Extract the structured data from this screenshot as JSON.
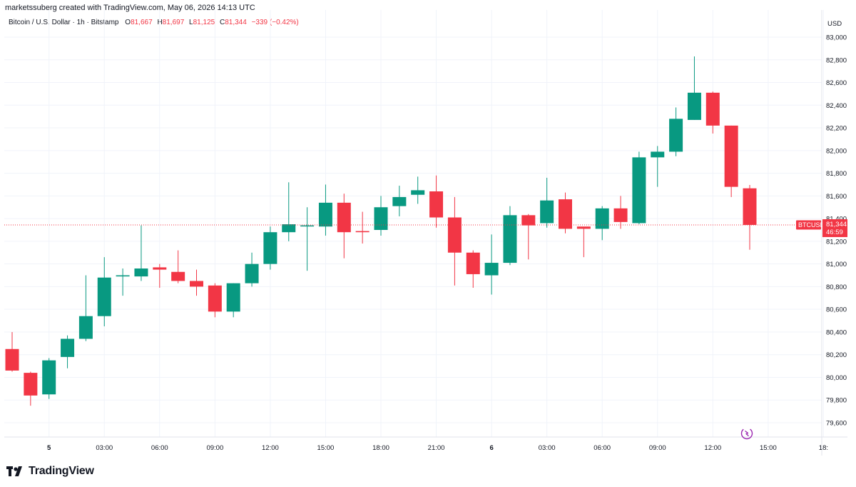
{
  "header": {
    "credit": "marketssuberg created with TradingView.com, May 06, 2026 14:13 UTC"
  },
  "legend": {
    "symbol": "Bitcoin / U.S. Dollar · 1h · Bitstamp",
    "o_label": "O",
    "o_value": "81,667",
    "h_label": "H",
    "h_value": "81,697",
    "l_label": "L",
    "l_value": "81,125",
    "c_label": "C",
    "c_value": "81,344",
    "change": "−339 (−0.42%)"
  },
  "price_tag": {
    "symbol": "BTCUSD",
    "price": "81,344",
    "countdown": "46:59"
  },
  "brand": {
    "name": "TradingView"
  },
  "colors": {
    "up": "#089981",
    "down": "#f23645",
    "grid": "#f0f3fa",
    "axis_text": "#131722"
  },
  "chart_data": {
    "type": "candlestick",
    "currency": "USD",
    "ylim": [
      79450,
      83150
    ],
    "y_ticks": [
      79600,
      79800,
      80000,
      80200,
      80400,
      80600,
      80800,
      81000,
      81200,
      81400,
      81600,
      81800,
      82000,
      82200,
      82400,
      82600,
      82800,
      83000
    ],
    "y_tick_labels": [
      "79,600",
      "79,800",
      "80,000",
      "80,200",
      "80,400",
      "80,600",
      "80,800",
      "81,000",
      "81,200",
      "81,400",
      "81,600",
      "81,800",
      "82,000",
      "82,200",
      "82,400",
      "82,600",
      "82,800",
      "83,000"
    ],
    "x_ticks": [
      {
        "index": 2,
        "label": "5",
        "bold": true
      },
      {
        "index": 5,
        "label": "03:00"
      },
      {
        "index": 8,
        "label": "06:00"
      },
      {
        "index": 11,
        "label": "09:00"
      },
      {
        "index": 14,
        "label": "12:00"
      },
      {
        "index": 17,
        "label": "15:00"
      },
      {
        "index": 20,
        "label": "18:00"
      },
      {
        "index": 23,
        "label": "21:00"
      },
      {
        "index": 26,
        "label": "6",
        "bold": true
      },
      {
        "index": 29,
        "label": "03:00"
      },
      {
        "index": 32,
        "label": "06:00"
      },
      {
        "index": 35,
        "label": "09:00"
      },
      {
        "index": 38,
        "label": "12:00"
      },
      {
        "index": 41,
        "label": "15:00"
      },
      {
        "index": 44,
        "label": "18:"
      }
    ],
    "last_price": 81344,
    "candles": [
      {
        "o": 80250,
        "h": 80400,
        "l": 80050,
        "c": 80060
      },
      {
        "o": 80040,
        "h": 80050,
        "l": 79750,
        "c": 79840
      },
      {
        "o": 79850,
        "h": 80170,
        "l": 79810,
        "c": 80150
      },
      {
        "o": 80180,
        "h": 80370,
        "l": 80080,
        "c": 80340
      },
      {
        "o": 80340,
        "h": 80900,
        "l": 80320,
        "c": 80540
      },
      {
        "o": 80540,
        "h": 81060,
        "l": 80450,
        "c": 80880
      },
      {
        "o": 80890,
        "h": 80960,
        "l": 80720,
        "c": 80900
      },
      {
        "o": 80890,
        "h": 81340,
        "l": 80850,
        "c": 80960
      },
      {
        "o": 80970,
        "h": 81000,
        "l": 80790,
        "c": 80950
      },
      {
        "o": 80930,
        "h": 81120,
        "l": 80830,
        "c": 80850
      },
      {
        "o": 80850,
        "h": 80950,
        "l": 80720,
        "c": 80800
      },
      {
        "o": 80810,
        "h": 80830,
        "l": 80530,
        "c": 80580
      },
      {
        "o": 80580,
        "h": 80830,
        "l": 80530,
        "c": 80830
      },
      {
        "o": 80830,
        "h": 81100,
        "l": 80800,
        "c": 81000
      },
      {
        "o": 81000,
        "h": 81330,
        "l": 80950,
        "c": 81280
      },
      {
        "o": 81280,
        "h": 81720,
        "l": 81200,
        "c": 81350
      },
      {
        "o": 81340,
        "h": 81500,
        "l": 80940,
        "c": 81340
      },
      {
        "o": 81330,
        "h": 81700,
        "l": 81250,
        "c": 81540
      },
      {
        "o": 81540,
        "h": 81620,
        "l": 81050,
        "c": 81280
      },
      {
        "o": 81290,
        "h": 81460,
        "l": 81180,
        "c": 81280
      },
      {
        "o": 81300,
        "h": 81600,
        "l": 81250,
        "c": 81500
      },
      {
        "o": 81510,
        "h": 81690,
        "l": 81420,
        "c": 81590
      },
      {
        "o": 81610,
        "h": 81770,
        "l": 81530,
        "c": 81650
      },
      {
        "o": 81640,
        "h": 81780,
        "l": 81320,
        "c": 81410
      },
      {
        "o": 81410,
        "h": 81590,
        "l": 80810,
        "c": 81100
      },
      {
        "o": 81100,
        "h": 81120,
        "l": 80790,
        "c": 80910
      },
      {
        "o": 80900,
        "h": 81260,
        "l": 80730,
        "c": 81010
      },
      {
        "o": 81010,
        "h": 81510,
        "l": 80990,
        "c": 81430
      },
      {
        "o": 81430,
        "h": 81440,
        "l": 81040,
        "c": 81340
      },
      {
        "o": 81360,
        "h": 81760,
        "l": 81320,
        "c": 81560
      },
      {
        "o": 81570,
        "h": 81630,
        "l": 81270,
        "c": 81310
      },
      {
        "o": 81330,
        "h": 81320,
        "l": 81060,
        "c": 81310
      },
      {
        "o": 81310,
        "h": 81510,
        "l": 81210,
        "c": 81490
      },
      {
        "o": 81490,
        "h": 81600,
        "l": 81310,
        "c": 81370
      },
      {
        "o": 81360,
        "h": 81990,
        "l": 81350,
        "c": 81940
      },
      {
        "o": 81940,
        "h": 82040,
        "l": 81680,
        "c": 81990
      },
      {
        "o": 81990,
        "h": 82380,
        "l": 81950,
        "c": 82280
      },
      {
        "o": 82270,
        "h": 82830,
        "l": 82270,
        "c": 82510
      },
      {
        "o": 82510,
        "h": 82520,
        "l": 82150,
        "c": 82220
      },
      {
        "o": 82220,
        "h": 82220,
        "l": 81590,
        "c": 81680
      },
      {
        "o": 81667,
        "h": 81697,
        "l": 81125,
        "c": 81344
      }
    ]
  }
}
